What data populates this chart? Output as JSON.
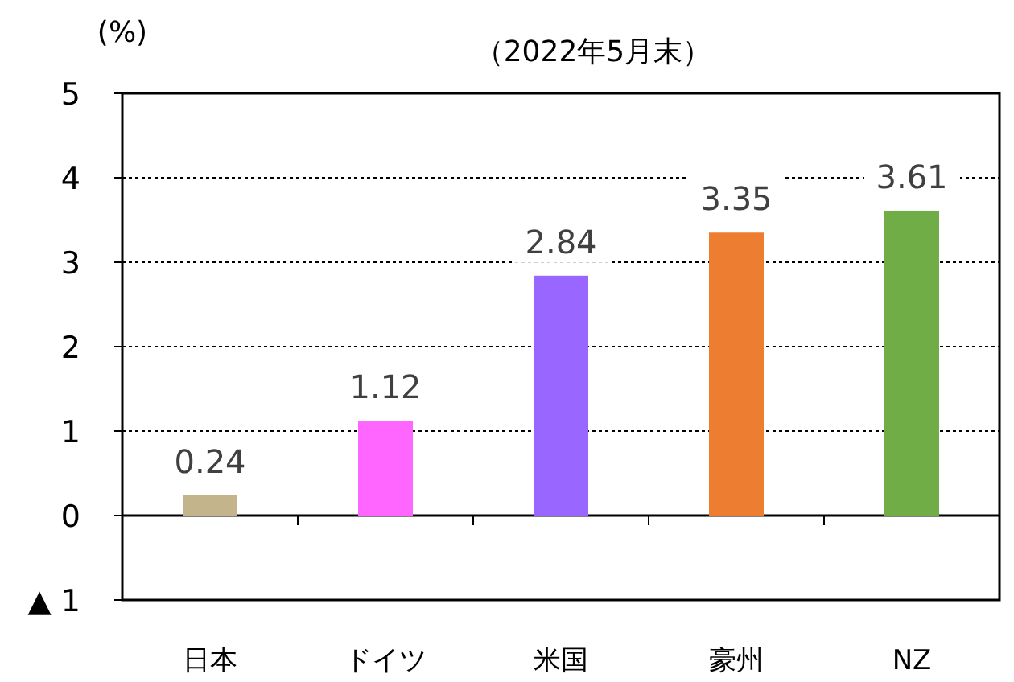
{
  "chart_data": {
    "type": "bar",
    "title": "（2022年5月末）",
    "ylabel": "(%)",
    "categories": [
      "日本",
      "ドイツ",
      "米国",
      "豪州",
      "NZ"
    ],
    "values": [
      0.24,
      1.12,
      2.84,
      3.35,
      3.61
    ],
    "colors": [
      "#c4b48c",
      "#ff66ff",
      "#9966ff",
      "#ed7d31",
      "#70ad47"
    ],
    "ylim": [
      -1,
      5
    ],
    "yticks": [
      {
        "value": -1,
        "label": "▲ 1"
      },
      0,
      1,
      2,
      3,
      4,
      5
    ],
    "grid": "y",
    "data_labels": true
  }
}
